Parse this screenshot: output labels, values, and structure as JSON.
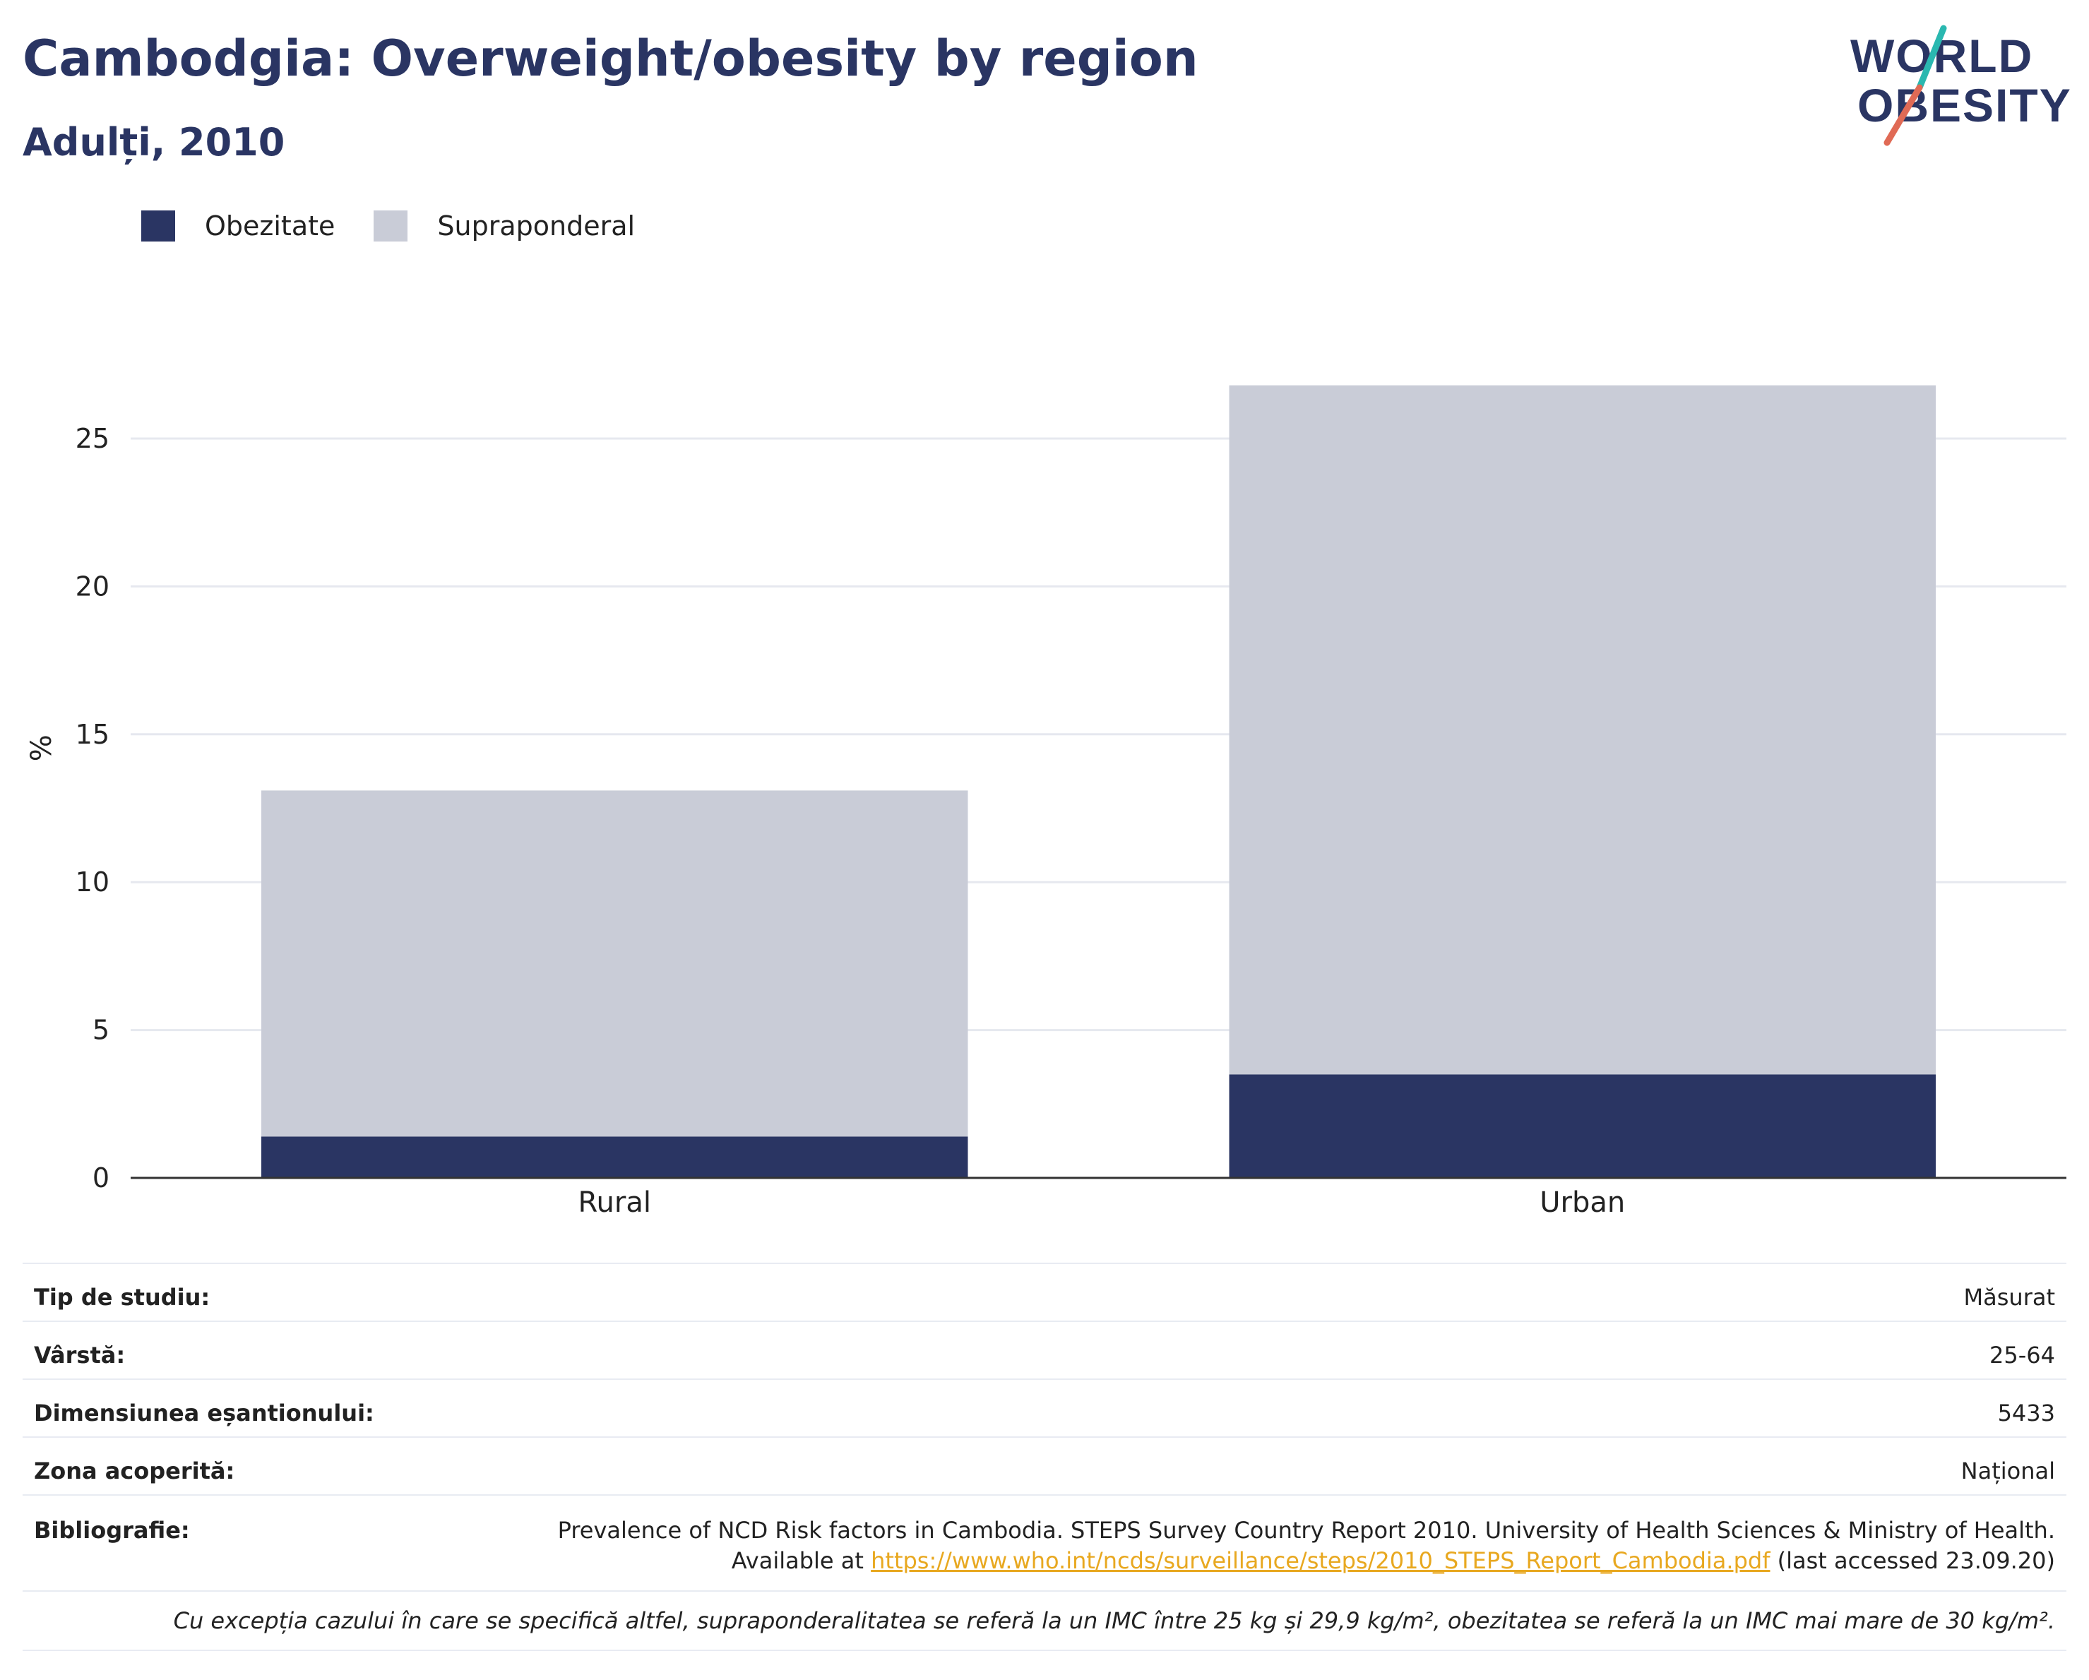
{
  "header": {
    "title": "Cambodgia: Overweight/obesity by region",
    "subtitle": "Adulți, 2010"
  },
  "logo": {
    "line1": "WORLD",
    "line2": "OBESITY"
  },
  "legend": [
    {
      "label": "Obezitate",
      "color": "#2a3563"
    },
    {
      "label": "Supraponderal",
      "color": "#c9ccd7"
    }
  ],
  "chart_data": {
    "type": "bar",
    "stacked": true,
    "categories": [
      "Rural",
      "Urban"
    ],
    "series": [
      {
        "name": "Obezitate",
        "color": "#2a3563",
        "values": [
          1.4,
          3.5
        ]
      },
      {
        "name": "Supraponderal",
        "color": "#c9ccd7",
        "values": [
          11.7,
          23.3
        ]
      }
    ],
    "ylabel": "%",
    "yticks": [
      0,
      5,
      10,
      15,
      20,
      25
    ],
    "ylim": [
      0,
      29.8
    ],
    "grid": true,
    "legend_position": "top-left"
  },
  "info": {
    "study_type_label": "Tip de studiu:",
    "study_type_value": "Măsurat",
    "age_label": "Vârstă:",
    "age_value": "25-64",
    "sample_label": "Dimensiunea eșantionului:",
    "sample_value": "5433",
    "area_label": "Zona acoperită:",
    "area_value": "Național",
    "bib_label": "Bibliografie:",
    "bib_line1": "Prevalence of NCD Risk factors in Cambodia. STEPS Survey Country Report 2010. University of Health Sciences & Ministry of Health.",
    "bib_line2_prefix": "Available at ",
    "bib_link": "https://www.who.int/ncds/surveillance/steps/2010_STEPS_Report_Cambodia.pdf",
    "bib_line2_suffix": " (last accessed 23.09.20)",
    "note": "Cu excepția cazului în care se specifică altfel, supraponderalitatea se referă la un IMC între 25 kg și 29,9 kg/m², obezitatea se referă la un IMC mai mare de 30 kg/m²."
  }
}
